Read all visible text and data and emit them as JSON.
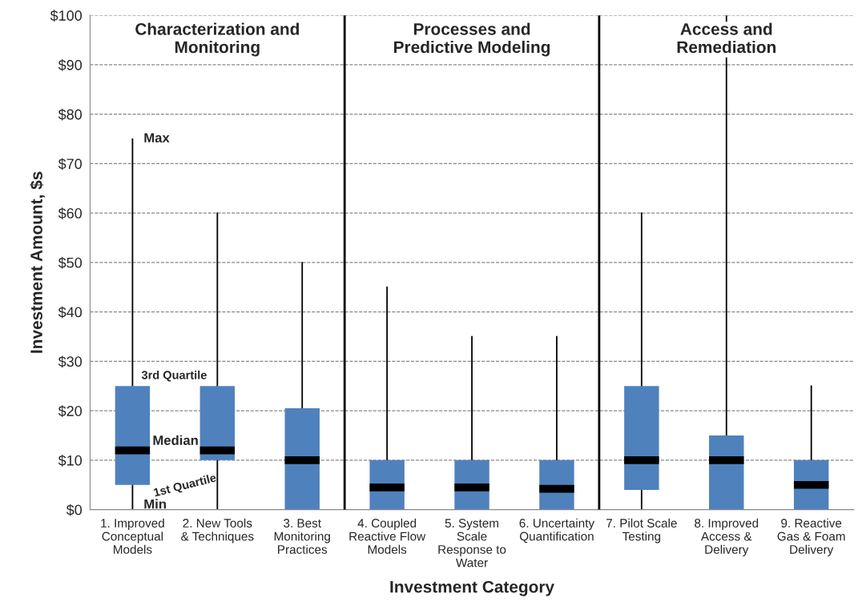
{
  "chart_data": {
    "type": "box",
    "xlabel": "Investment Category",
    "ylabel": "Investment Amount, $s",
    "categories": [
      "1. Improved\nConceptual\nModels",
      "2. New Tools\n& Techniques",
      "3. Best\nMonitoring\nPractices",
      "4. Coupled\nReactive Flow\nModels",
      "5. System\nScale\nResponse to\nWater",
      "6. Uncertainty\nQuantification",
      "7. Pilot Scale\nTesting",
      "8. Improved\nAccess &\nDelivery",
      "9. Reactive\nGas & Foam\nDelivery"
    ],
    "boxes": [
      {
        "low": 0,
        "q1": 5,
        "median": 12,
        "q3": 25,
        "high": 75
      },
      {
        "low": 0,
        "q1": 10,
        "median": 12,
        "q3": 25,
        "high": 60
      },
      {
        "low": 0,
        "q1": 0,
        "median": 10,
        "q3": 20.5,
        "high": 50
      },
      {
        "low": 0,
        "q1": 0,
        "median": 4.5,
        "q3": 10,
        "high": 45
      },
      {
        "low": 0,
        "q1": 0,
        "median": 4.5,
        "q3": 10,
        "high": 35
      },
      {
        "low": 0,
        "q1": 0,
        "median": 4.2,
        "q3": 10,
        "high": 35
      },
      {
        "low": 0,
        "q1": 4,
        "median": 10,
        "q3": 25,
        "high": 60
      },
      {
        "low": 0,
        "q1": 0,
        "median": 10,
        "q3": 15,
        "high": 100
      },
      {
        "low": 0,
        "q1": 0,
        "median": 5,
        "q3": 10,
        "high": 25
      }
    ],
    "color": "#4f81bd",
    "ylim": [
      0,
      100
    ],
    "yticks": [
      {
        "value": 0,
        "label": "$0"
      },
      {
        "value": 10,
        "label": "$10"
      },
      {
        "value": 20,
        "label": "$20"
      },
      {
        "value": 30,
        "label": "$30"
      },
      {
        "value": 40,
        "label": "$40"
      },
      {
        "value": 50,
        "label": "$50"
      },
      {
        "value": 60,
        "label": "$60"
      },
      {
        "value": 70,
        "label": "$70"
      },
      {
        "value": 80,
        "label": "$80"
      },
      {
        "value": 90,
        "label": "$90"
      },
      {
        "value": 100,
        "label": "$100"
      }
    ],
    "grid": "y",
    "annotations": [
      "Characterization and\nMonitoring",
      "Processes and\nPredictive Modeling",
      "Access and\nRemediation",
      {
        "text": "Max",
        "x": "1. Improved\nConceptual\nModels",
        "y": 75
      },
      {
        "text": "3rd Quartile",
        "x": "1. Improved\nConceptual\nModels",
        "y": 25
      },
      {
        "text": "Median",
        "x": "1. Improved\nConceptual\nModels",
        "y": 12
      },
      {
        "text": "1st Quartile",
        "x": "1. Improved\nConceptual\nModels",
        "y": 5
      },
      {
        "text": "Min",
        "x": "1. Improved\nConceptual\nModels",
        "y": 0
      }
    ]
  }
}
